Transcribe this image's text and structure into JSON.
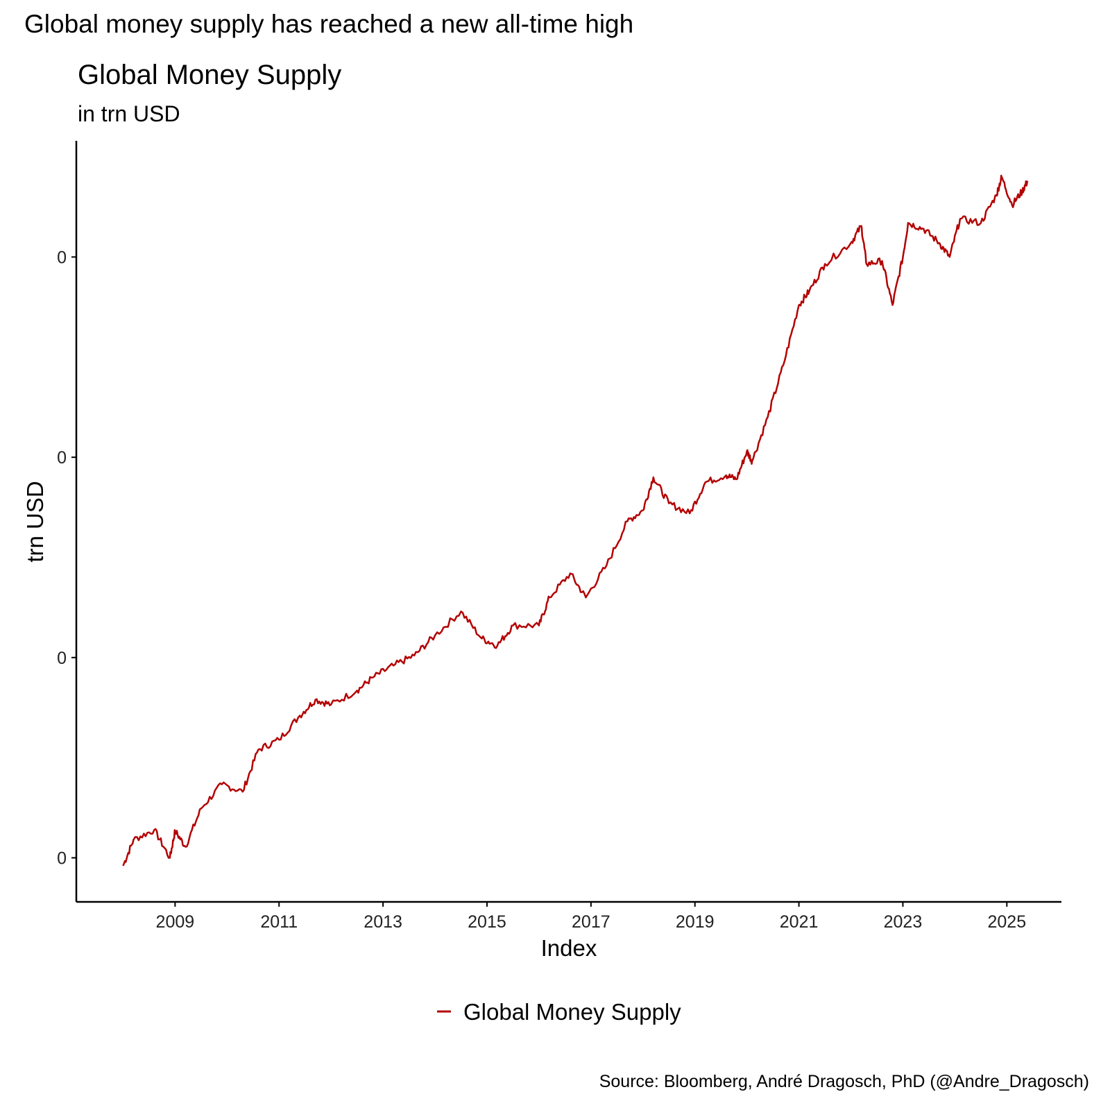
{
  "headline": "Global money supply has reached a new all-time high",
  "source": "Source: Bloomberg, André Dragosch, PhD (@Andre_Dragosch)",
  "chart_data": {
    "type": "line",
    "title": "Global Money Supply",
    "subtitle": "in trn USD",
    "xlabel": "Index",
    "ylabel": "trn USD",
    "x_ticks": [
      2009,
      2011,
      2013,
      2015,
      2017,
      2019,
      2021,
      2023,
      2025
    ],
    "x_tick_labels": [
      "2009",
      "2011",
      "2013",
      "2015",
      "2017",
      "2019",
      "2021",
      "2023",
      "2025"
    ],
    "y_ticks_relative": [
      0,
      1,
      2,
      3
    ],
    "y_tick_labels": [
      "0",
      "0",
      "0",
      "0"
    ],
    "y_units_note": "values in relative tick units (printed tick labels are all 0)",
    "xlim": [
      2007.1,
      2026.05
    ],
    "ylim": [
      -0.22,
      3.58
    ],
    "grid": false,
    "legend_position": "bottom",
    "series": [
      {
        "name": "Global Money Supply",
        "color": "#b30000",
        "x": [
          2008.0,
          2008.2,
          2008.6,
          2008.9,
          2009.0,
          2009.2,
          2009.5,
          2009.9,
          2010.3,
          2010.6,
          2011.0,
          2011.4,
          2011.7,
          2012.0,
          2012.5,
          2012.8,
          2013.2,
          2013.6,
          2014.0,
          2014.5,
          2014.9,
          2015.2,
          2015.5,
          2016.0,
          2016.2,
          2016.6,
          2016.9,
          2017.3,
          2017.7,
          2018.0,
          2018.2,
          2018.5,
          2018.9,
          2019.2,
          2019.6,
          2019.8,
          2020.0,
          2020.1,
          2020.4,
          2020.7,
          2021.0,
          2021.2,
          2021.5,
          2022.0,
          2022.2,
          2022.3,
          2022.6,
          2022.8,
          2023.0,
          2023.1,
          2023.4,
          2023.7,
          2023.9,
          2024.1,
          2024.5,
          2024.8,
          2024.9,
          2025.1,
          2025.3,
          2025.4
        ],
        "values": [
          -0.04,
          0.09,
          0.14,
          0.0,
          0.135,
          0.055,
          0.246,
          0.367,
          0.33,
          0.54,
          0.59,
          0.71,
          0.79,
          0.765,
          0.835,
          0.9,
          0.96,
          1.01,
          1.11,
          1.23,
          1.095,
          1.06,
          1.16,
          1.16,
          1.3,
          1.42,
          1.3,
          1.46,
          1.68,
          1.735,
          1.9,
          1.77,
          1.72,
          1.875,
          1.91,
          1.89,
          2.03,
          1.98,
          2.2,
          2.46,
          2.76,
          2.83,
          2.965,
          3.07,
          3.155,
          2.965,
          2.98,
          2.76,
          3.0,
          3.17,
          3.14,
          3.07,
          3.0,
          3.19,
          3.17,
          3.31,
          3.4,
          3.26,
          3.33,
          3.38
        ]
      }
    ]
  }
}
